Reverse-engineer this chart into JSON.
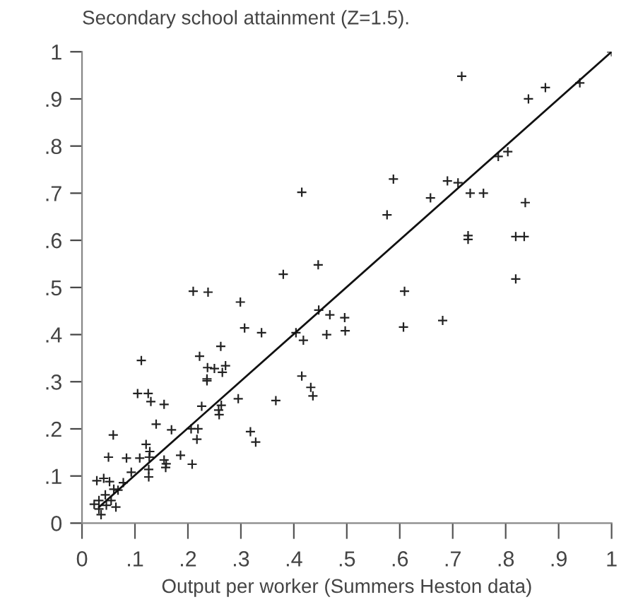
{
  "chart_data": {
    "type": "scatter",
    "title": "Secondary school attainment (Z=1.5).",
    "xlabel": "Output per worker (Summers Heston data)",
    "xlim": [
      0,
      1
    ],
    "ylim": [
      0,
      1
    ],
    "xticks": [
      0,
      {
        "value": 0.1,
        "label": ".1"
      },
      {
        "value": 0.2,
        "label": ".2"
      },
      {
        "value": 0.3,
        "label": ".3"
      },
      {
        "value": 0.4,
        "label": ".4"
      },
      {
        "value": 0.5,
        "label": ".5"
      },
      {
        "value": 0.6,
        "label": ".6"
      },
      {
        "value": 0.7,
        "label": ".7"
      },
      {
        "value": 0.8,
        "label": ".8"
      },
      {
        "value": 0.9,
        "label": ".9"
      },
      1
    ],
    "yticks": [
      0,
      {
        "value": 0.1,
        "label": ".1"
      },
      {
        "value": 0.2,
        "label": ".2"
      },
      {
        "value": 0.3,
        "label": ".3"
      },
      {
        "value": 0.4,
        "label": ".4"
      },
      {
        "value": 0.5,
        "label": ".5"
      },
      {
        "value": 0.6,
        "label": ".6"
      },
      {
        "value": 0.7,
        "label": ".7"
      },
      {
        "value": 0.8,
        "label": ".8"
      },
      {
        "value": 0.9,
        "label": ".9"
      },
      1
    ],
    "grid": false,
    "legend": false,
    "series": [
      {
        "color": "#222222",
        "marker": "cross",
        "x": [
          1.0,
          0.717,
          0.875,
          0.843,
          0.94,
          0.786,
          0.804,
          0.588,
          0.69,
          0.71,
          0.415,
          0.733,
          0.758,
          0.837,
          0.658,
          0.576,
          0.729,
          0.729,
          0.819,
          0.835,
          0.819,
          0.38,
          0.446,
          0.609,
          0.21,
          0.238,
          0.299,
          0.447,
          0.468,
          0.496,
          0.681,
          0.307,
          0.607,
          0.339,
          0.404,
          0.462,
          0.497,
          0.418,
          0.262,
          0.112,
          0.222,
          0.237,
          0.25,
          0.271,
          0.265,
          0.415,
          0.236,
          0.236,
          0.432,
          0.436,
          0.105,
          0.125,
          0.13,
          0.155,
          0.366,
          0.295,
          0.226,
          0.258,
          0.263,
          0.259,
          0.14,
          0.318,
          0.328,
          0.169,
          0.206,
          0.219,
          0.217,
          0.059,
          0.121,
          0.128,
          0.127,
          0.084,
          0.109,
          0.05,
          0.155,
          0.159,
          0.186,
          0.158,
          0.126,
          0.208,
          0.126,
          0.093,
          0.028,
          0.041,
          0.052,
          0.078,
          0.06,
          0.068,
          0.032,
          0.044,
          0.055,
          0.032,
          0.064,
          0.036,
          0.046,
          0.023
        ],
        "values": [
          1.0,
          0.948,
          0.924,
          0.9,
          0.934,
          0.778,
          0.788,
          0.73,
          0.726,
          0.722,
          0.702,
          0.7,
          0.7,
          0.68,
          0.69,
          0.654,
          0.61,
          0.602,
          0.608,
          0.608,
          0.518,
          0.528,
          0.548,
          0.492,
          0.492,
          0.49,
          0.469,
          0.452,
          0.442,
          0.436,
          0.43,
          0.414,
          0.416,
          0.404,
          0.404,
          0.4,
          0.408,
          0.388,
          0.375,
          0.345,
          0.354,
          0.33,
          0.328,
          0.334,
          0.32,
          0.312,
          0.306,
          0.302,
          0.288,
          0.27,
          0.275,
          0.275,
          0.258,
          0.252,
          0.26,
          0.264,
          0.248,
          0.24,
          0.25,
          0.23,
          0.21,
          0.194,
          0.172,
          0.198,
          0.2,
          0.2,
          0.178,
          0.187,
          0.167,
          0.152,
          0.14,
          0.138,
          0.138,
          0.14,
          0.134,
          0.126,
          0.144,
          0.118,
          0.114,
          0.125,
          0.098,
          0.108,
          0.09,
          0.095,
          0.088,
          0.086,
          0.072,
          0.07,
          0.048,
          0.06,
          0.048,
          0.03,
          0.034,
          0.018,
          0.038,
          0.04
        ]
      },
      {
        "type": "line",
        "color": "#111111",
        "x": [
          0.032,
          1.0
        ],
        "values": [
          0.034,
          1.0
        ],
        "line_style": "solid"
      }
    ]
  }
}
